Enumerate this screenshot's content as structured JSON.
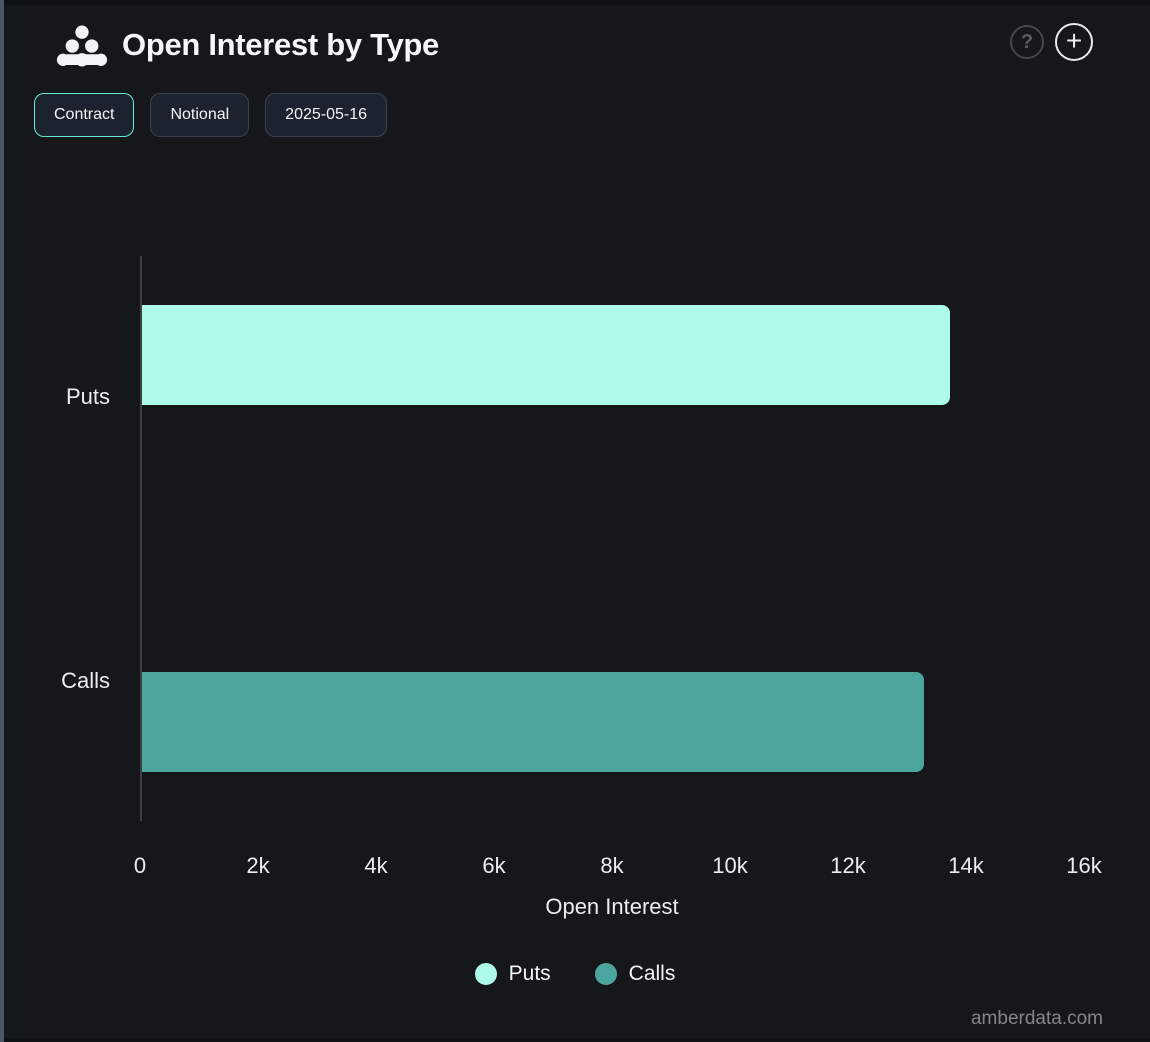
{
  "header": {
    "title": "Open Interest by Type",
    "help_glyph": "?",
    "add_glyph": "+"
  },
  "controls": {
    "buttons": [
      {
        "label": "Contract",
        "active": true
      },
      {
        "label": "Notional",
        "active": false
      },
      {
        "label": "2025-05-16",
        "active": false
      }
    ]
  },
  "chart_data": {
    "type": "bar",
    "orientation": "horizontal",
    "title": "Open Interest by Type",
    "categories": [
      "Puts",
      "Calls"
    ],
    "series": [
      {
        "name": "Puts",
        "value": 13700,
        "color": "#aefbea"
      },
      {
        "name": "Calls",
        "value": 13250,
        "color": "#4ba59e"
      }
    ],
    "xlabel": "Open Interest",
    "xlim": [
      0,
      16000
    ],
    "xtick_step": 2000,
    "xticks": [
      "0",
      "2k",
      "4k",
      "6k",
      "8k",
      "10k",
      "12k",
      "14k",
      "16k"
    ],
    "grid": false,
    "legend": [
      {
        "label": "Puts",
        "color": "#aefbea"
      },
      {
        "label": "Calls",
        "color": "#4ba59e"
      }
    ],
    "legend_position": "bottom"
  },
  "footer": {
    "watermark": "amberdata.com"
  },
  "colors": {
    "background": "#16171a",
    "accent_active_border": "#61e9d2",
    "puts": "#aefbea",
    "calls": "#4ba59e",
    "axis_line": "#3c4044",
    "text": "#ecedee"
  }
}
